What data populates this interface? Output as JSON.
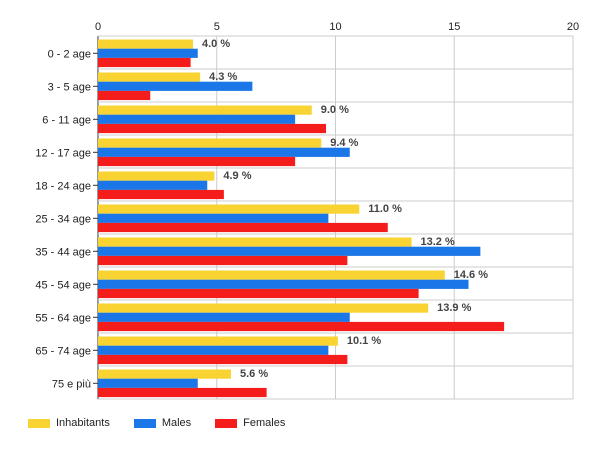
{
  "chart_data": {
    "type": "bar",
    "orientation": "horizontal",
    "categories": [
      "0 - 2 age",
      "3 - 5 age",
      "6 - 11 age",
      "12 - 17 age",
      "18 - 24 age",
      "25 - 34 age",
      "35 - 44 age",
      "45 - 54 age",
      "55 - 64 age",
      "65 - 74 age",
      "75 e più"
    ],
    "series": [
      {
        "name": "Inhabitants",
        "color": "#f9d331",
        "values": [
          4.0,
          4.3,
          9.0,
          9.4,
          4.9,
          11.0,
          13.2,
          14.6,
          13.9,
          10.1,
          5.6
        ]
      },
      {
        "name": "Males",
        "color": "#1b76e8",
        "values": [
          4.2,
          6.5,
          8.3,
          10.6,
          4.6,
          9.7,
          16.1,
          15.6,
          10.6,
          9.7,
          4.2
        ]
      },
      {
        "name": "Females",
        "color": "#f51c1c",
        "values": [
          3.9,
          2.2,
          9.6,
          8.3,
          5.3,
          12.2,
          10.5,
          13.5,
          17.1,
          10.5,
          7.1
        ]
      }
    ],
    "data_labels": [
      "4.0 %",
      "4.3 %",
      "9.0 %",
      "9.4 %",
      "4.9 %",
      "11.0 %",
      "13.2 %",
      "14.6 %",
      "13.9 %",
      "10.1 %",
      "5.6 %"
    ],
    "x_ticks": [
      "0",
      "5",
      "10",
      "15",
      "20"
    ],
    "xlim": [
      0,
      20
    ],
    "grid": true,
    "legend_position": "bottom-left"
  }
}
